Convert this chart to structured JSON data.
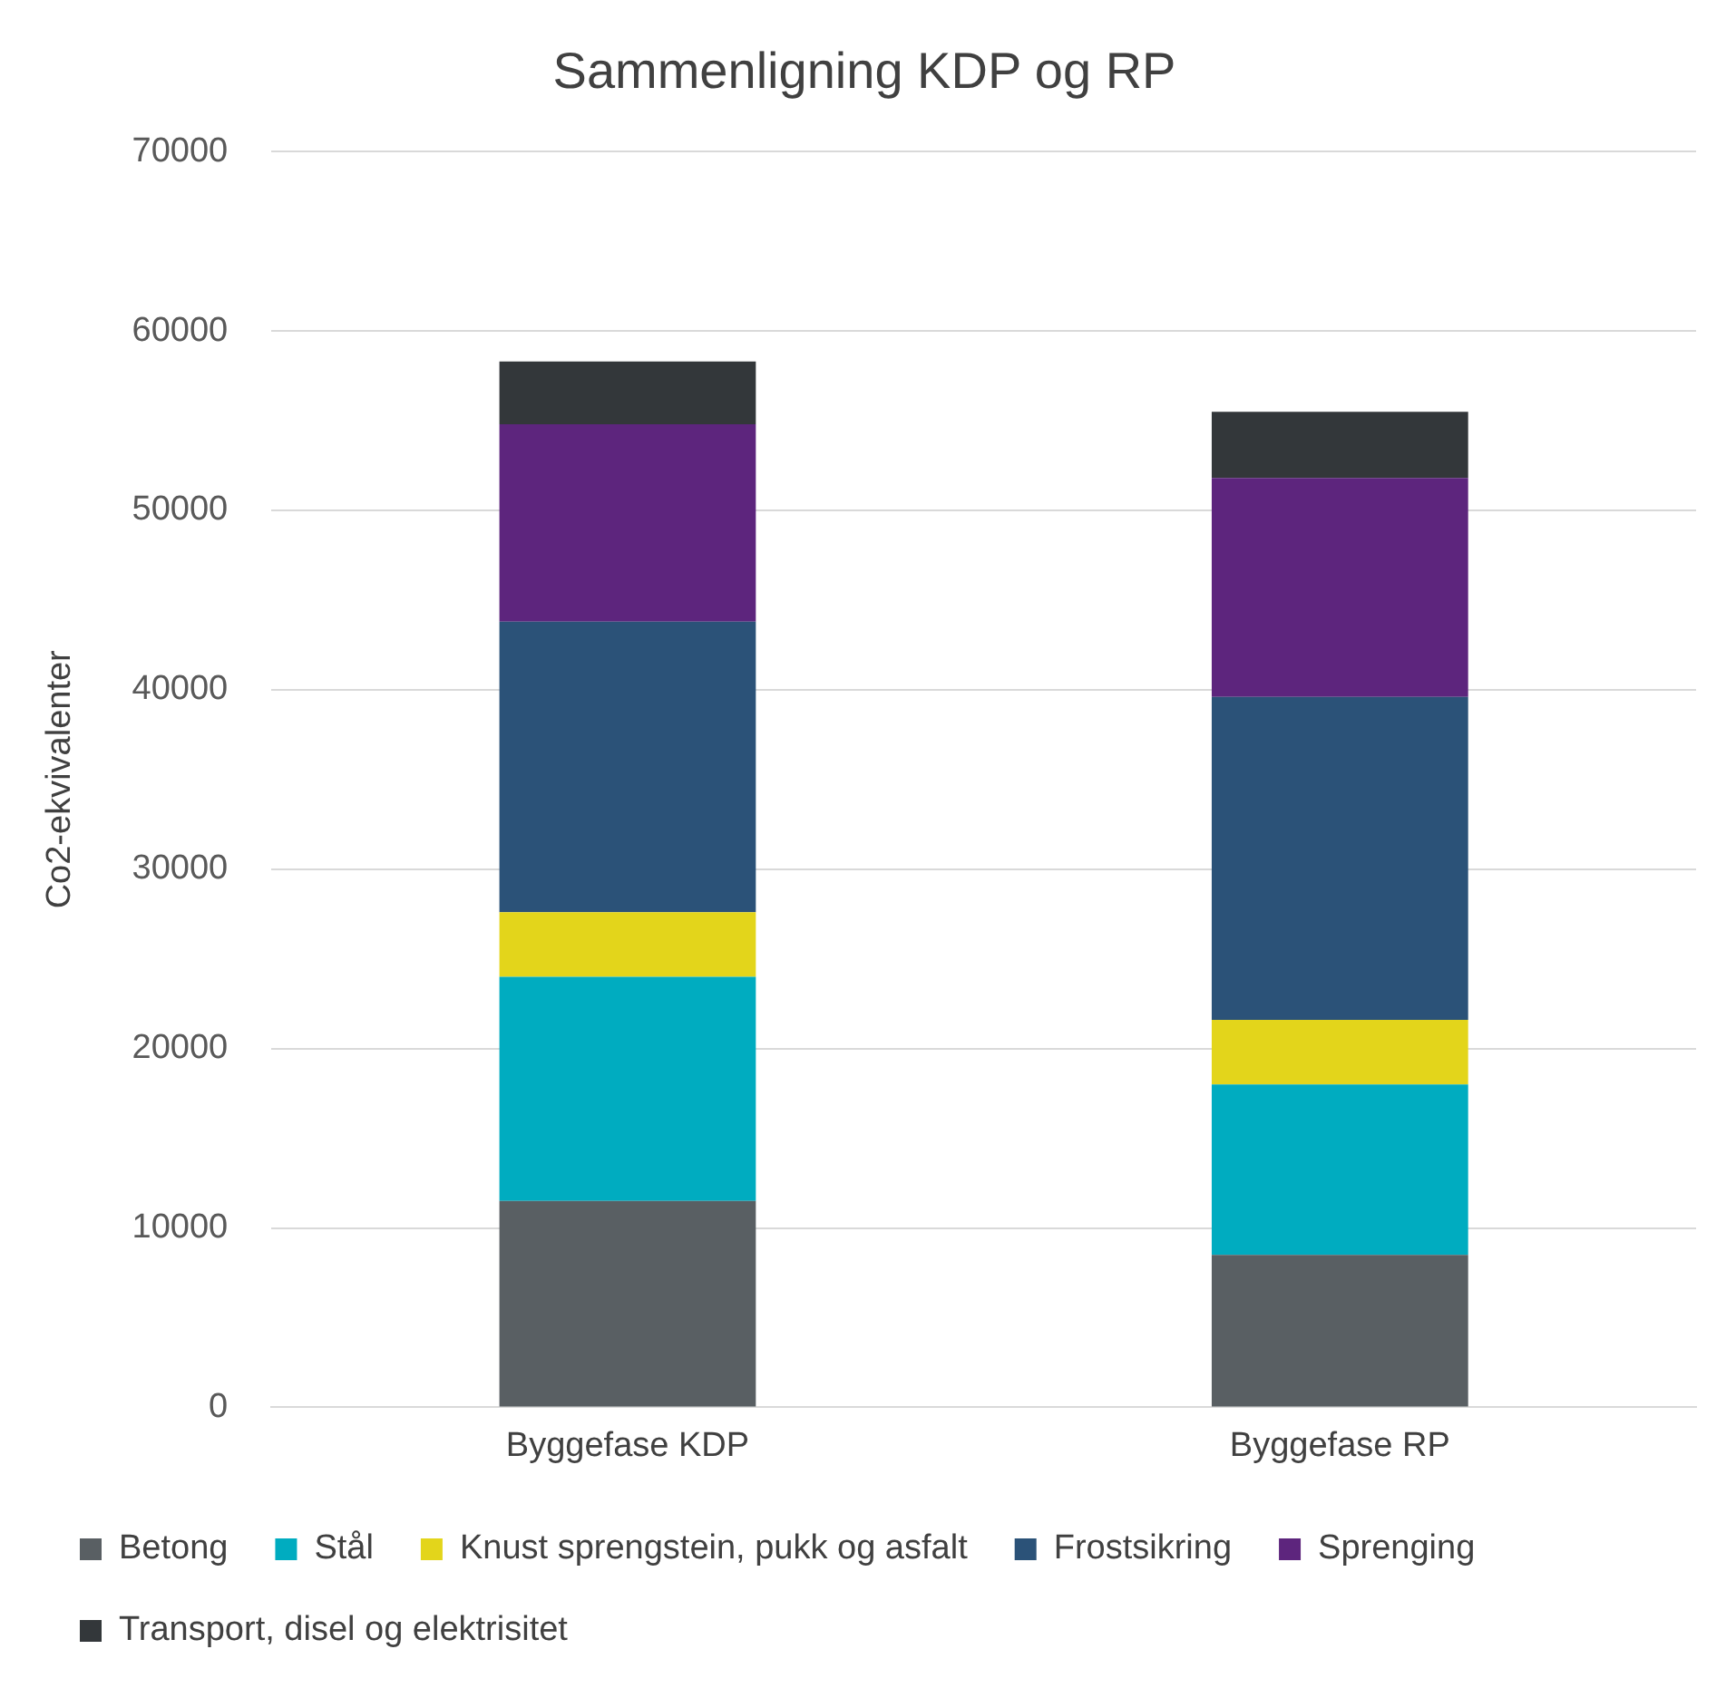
{
  "chart_data": {
    "type": "bar",
    "title": "Sammenligning KDP og RP",
    "ylabel": "Co2-ekvivalenter",
    "categories": [
      "Byggefase KDP",
      "Byggefase RP"
    ],
    "stacked": true,
    "series": [
      {
        "name": "Betong",
        "color": "#595f63",
        "values": [
          11500,
          8500
        ]
      },
      {
        "name": "Stål",
        "color": "#00acc0",
        "values": [
          12500,
          9500
        ]
      },
      {
        "name": "Knust sprengstein, pukk og asfalt",
        "color": "#e3d51b",
        "values": [
          3600,
          3600
        ]
      },
      {
        "name": "Frostsikring",
        "color": "#2b5278",
        "values": [
          16200,
          18000
        ]
      },
      {
        "name": "Sprenging",
        "color": "#5d257d",
        "values": [
          11000,
          12200
        ]
      },
      {
        "name": "Transport, disel og elektrisitet",
        "color": "#33373a",
        "values": [
          3500,
          3700
        ]
      }
    ],
    "ylim": [
      0,
      70000
    ],
    "yticks": [
      0,
      10000,
      20000,
      30000,
      40000,
      50000,
      60000,
      70000
    ],
    "grid": "y",
    "legend": "bottom"
  }
}
